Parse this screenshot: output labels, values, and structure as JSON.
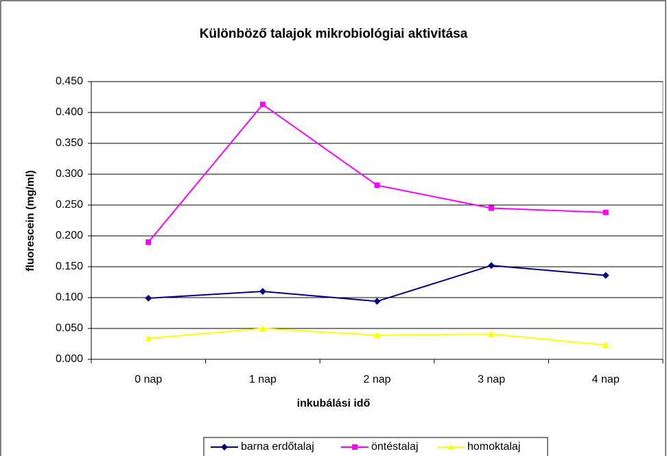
{
  "chart_data": {
    "type": "line",
    "title": "Különböző talajok mikrobiológiai aktivitása",
    "xlabel": "inkubálási idő",
    "ylabel": "fluorescein (mg/ml)",
    "categories": [
      "0 nap",
      "1 nap",
      "2 nap",
      "3 nap",
      "4 nap"
    ],
    "series": [
      {
        "name": "barna erdőtalaj",
        "color": "#000080",
        "marker": "diamond",
        "values": [
          0.099,
          0.11,
          0.094,
          0.152,
          0.136
        ]
      },
      {
        "name": "öntéstalaj",
        "color": "#ff00ff",
        "marker": "square",
        "values": [
          0.19,
          0.413,
          0.282,
          0.245,
          0.238
        ]
      },
      {
        "name": "homoktalaj",
        "color": "#ffff00",
        "marker": "triangle",
        "values": [
          0.034,
          0.05,
          0.039,
          0.041,
          0.023
        ]
      }
    ],
    "ylim": [
      0,
      0.45
    ],
    "yticks": [
      {
        "value": 0,
        "label": "0.000"
      },
      {
        "value": 0.05,
        "label": "0.050"
      },
      {
        "value": 0.1,
        "label": "0.100"
      },
      {
        "value": 0.15,
        "label": "0.150"
      },
      {
        "value": 0.2,
        "label": "0.200"
      },
      {
        "value": 0.25,
        "label": "0.250"
      },
      {
        "value": 0.3,
        "label": "0.300"
      },
      {
        "value": 0.35,
        "label": "0.350"
      },
      {
        "value": 0.4,
        "label": "0.400"
      },
      {
        "value": 0.45,
        "label": "0.450"
      }
    ],
    "grid": true,
    "legend": "bottom"
  }
}
